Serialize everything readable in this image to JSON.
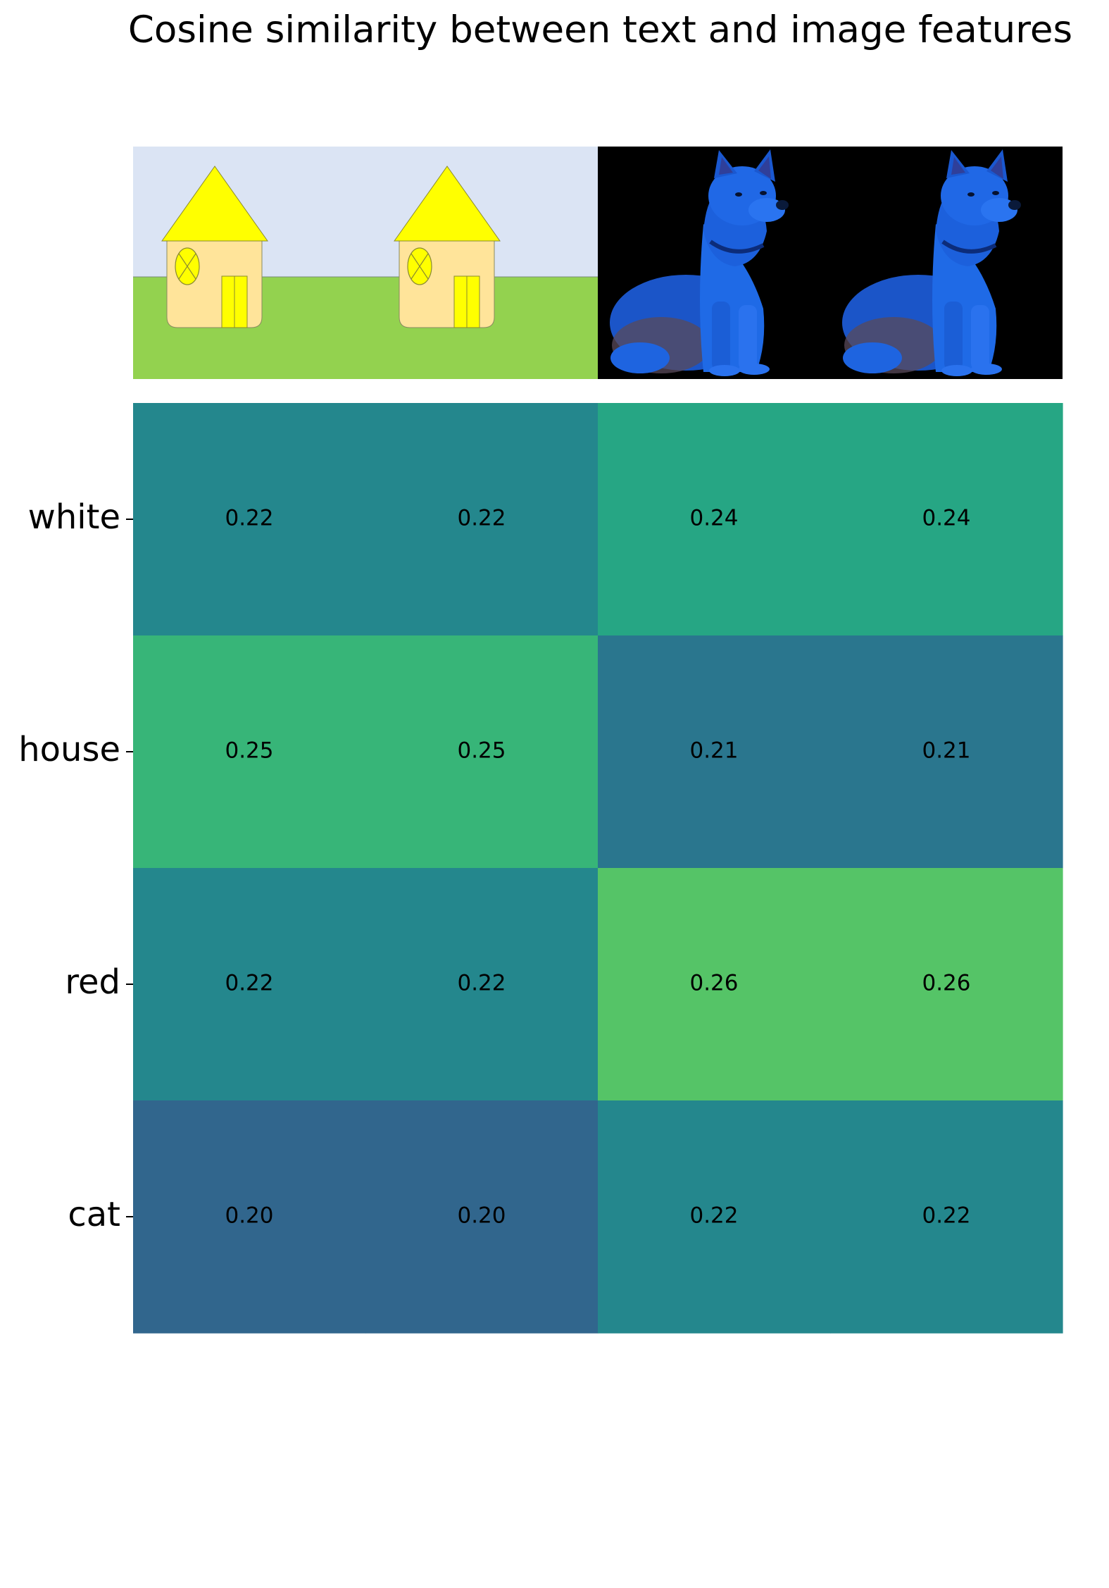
{
  "title": "Cosine similarity between text and image features",
  "images": [
    {
      "label": "",
      "icon": "house-drawing"
    },
    {
      "label": "",
      "icon": "house-drawing"
    },
    {
      "label": "",
      "icon": "blue-dog-photo"
    },
    {
      "label": "",
      "icon": "blue-dog-photo"
    }
  ],
  "colors": {
    "sky": "#dbe4f4",
    "grass": "#93d24f",
    "house_body": "#ffe49a",
    "roof": "#ffff00",
    "dog": "#1e64e0",
    "photo_bg": "#000000"
  },
  "chart_data": {
    "type": "heatmap",
    "title": "Cosine similarity between text and image features",
    "rows": [
      "white",
      "house",
      "red",
      "cat"
    ],
    "columns": [
      "house image",
      "house image",
      "dog image",
      "dog image"
    ],
    "values": [
      [
        0.22,
        0.22,
        0.24,
        0.24
      ],
      [
        0.25,
        0.25,
        0.21,
        0.21
      ],
      [
        0.22,
        0.22,
        0.26,
        0.26
      ],
      [
        0.2,
        0.2,
        0.22,
        0.22
      ]
    ],
    "value_labels": [
      [
        "0.22",
        "0.22",
        "0.24",
        "0.24"
      ],
      [
        "0.25",
        "0.25",
        "0.21",
        "0.21"
      ],
      [
        "0.22",
        "0.22",
        "0.26",
        "0.26"
      ],
      [
        "0.20",
        "0.20",
        "0.22",
        "0.22"
      ]
    ],
    "colormap": "viridis",
    "grid": false,
    "legend": "none"
  }
}
